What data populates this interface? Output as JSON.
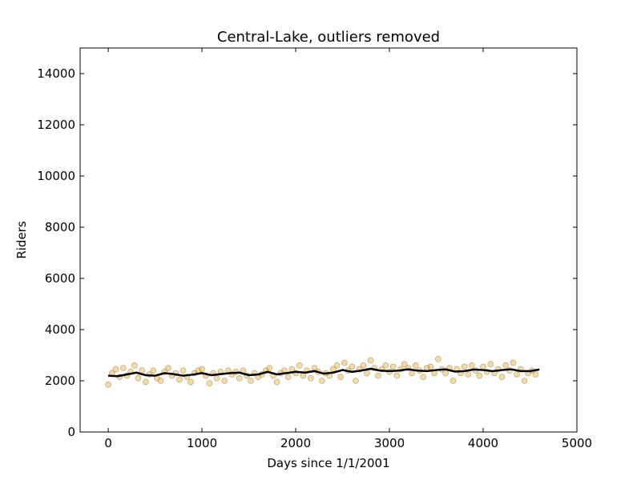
{
  "chart_data": {
    "type": "scatter",
    "title": "Central-Lake, outliers removed",
    "xlabel": "Days since 1/1/2001",
    "ylabel": "Riders",
    "xlim": [
      -300,
      5000
    ],
    "ylim": [
      0,
      15000
    ],
    "xticks": [
      0,
      1000,
      2000,
      3000,
      4000,
      5000
    ],
    "yticks": [
      0,
      2000,
      4000,
      6000,
      8000,
      10000,
      12000,
      14000
    ],
    "series": [
      {
        "type": "scatter",
        "color": "#e69500",
        "x": [
          0,
          40,
          80,
          120,
          160,
          200,
          240,
          280,
          320,
          360,
          400,
          440,
          480,
          520,
          560,
          600,
          640,
          680,
          720,
          760,
          800,
          840,
          880,
          920,
          960,
          1000,
          1040,
          1080,
          1120,
          1160,
          1200,
          1240,
          1280,
          1320,
          1360,
          1400,
          1440,
          1480,
          1520,
          1560,
          1600,
          1640,
          1680,
          1720,
          1760,
          1800,
          1840,
          1880,
          1920,
          1960,
          2000,
          2040,
          2080,
          2120,
          2160,
          2200,
          2240,
          2280,
          2320,
          2360,
          2400,
          2440,
          2480,
          2520,
          2560,
          2600,
          2640,
          2680,
          2720,
          2760,
          2800,
          2840,
          2880,
          2920,
          2960,
          3000,
          3040,
          3080,
          3120,
          3160,
          3200,
          3240,
          3280,
          3320,
          3360,
          3400,
          3440,
          3480,
          3520,
          3560,
          3600,
          3640,
          3680,
          3720,
          3760,
          3800,
          3840,
          3880,
          3920,
          3960,
          4000,
          4040,
          4080,
          4120,
          4160,
          4200,
          4240,
          4280,
          4320,
          4360,
          4400,
          4440,
          4480,
          4520,
          4560
        ],
        "values": [
          1850,
          2300,
          2450,
          2150,
          2500,
          2200,
          2350,
          2600,
          2100,
          2400,
          1950,
          2250,
          2400,
          2100,
          2000,
          2350,
          2500,
          2200,
          2300,
          2050,
          2400,
          2150,
          1950,
          2300,
          2400,
          2450,
          2200,
          1900,
          2300,
          2100,
          2350,
          2000,
          2400,
          2250,
          2350,
          2100,
          2400,
          2200,
          2000,
          2300,
          2150,
          2250,
          2400,
          2500,
          2200,
          1950,
          2300,
          2400,
          2150,
          2450,
          2300,
          2600,
          2200,
          2400,
          2100,
          2500,
          2350,
          2000,
          2300,
          2200,
          2450,
          2600,
          2150,
          2700,
          2400,
          2550,
          2000,
          2450,
          2600,
          2300,
          2800,
          2500,
          2200,
          2450,
          2600,
          2350,
          2550,
          2200,
          2450,
          2650,
          2500,
          2300,
          2600,
          2400,
          2150,
          2500,
          2550,
          2300,
          2850,
          2450,
          2300,
          2500,
          2000,
          2450,
          2300,
          2550,
          2250,
          2600,
          2400,
          2200,
          2550,
          2350,
          2650,
          2300,
          2450,
          2150,
          2600,
          2400,
          2700,
          2250,
          2450,
          2000,
          2300,
          2400,
          2250
        ]
      },
      {
        "type": "line",
        "color": "#000000",
        "x": [
          0,
          100,
          200,
          300,
          400,
          500,
          600,
          700,
          800,
          900,
          1000,
          1100,
          1200,
          1300,
          1400,
          1500,
          1600,
          1700,
          1800,
          1900,
          2000,
          2100,
          2200,
          2300,
          2400,
          2500,
          2600,
          2700,
          2800,
          2900,
          3000,
          3100,
          3200,
          3300,
          3400,
          3500,
          3600,
          3700,
          3800,
          3900,
          4000,
          4100,
          4200,
          4300,
          4400,
          4500,
          4600
        ],
        "values": [
          2200,
          2180,
          2250,
          2320,
          2220,
          2200,
          2300,
          2260,
          2200,
          2240,
          2300,
          2220,
          2260,
          2300,
          2320,
          2220,
          2250,
          2350,
          2250,
          2300,
          2350,
          2320,
          2380,
          2280,
          2320,
          2420,
          2350,
          2400,
          2470,
          2400,
          2380,
          2400,
          2450,
          2400,
          2380,
          2420,
          2450,
          2360,
          2380,
          2440,
          2420,
          2380,
          2420,
          2450,
          2380,
          2380,
          2440
        ]
      }
    ]
  }
}
